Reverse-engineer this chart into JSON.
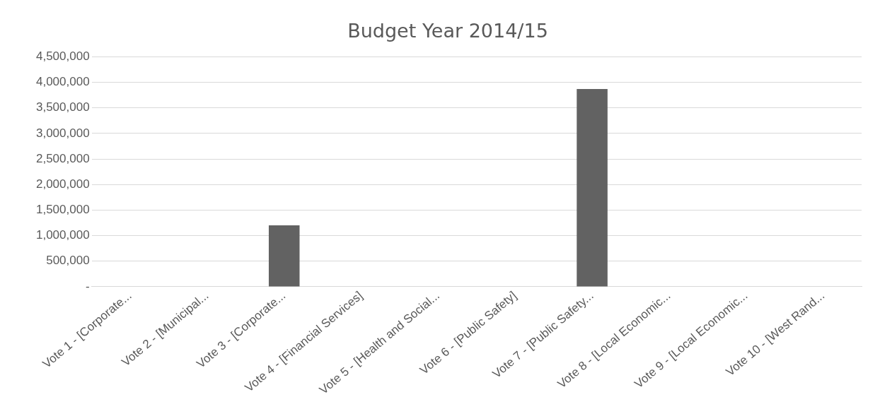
{
  "chart_data": {
    "type": "bar",
    "title": "Budget Year 2014/15",
    "categories": [
      "Vote 1 - [Corporate...",
      "Vote 2 - [Municipal...",
      "Vote 3 - [Corporate...",
      "Vote 4 - [Financial Services]",
      "Vote 5 - [Health and Social...",
      "Vote 6 - [Public Safety]",
      "Vote 7 - [Public Safety...",
      "Vote 8 - [Local Economic...",
      "Vote 9 - [Local Economic...",
      "Vote 10 - [West Rand..."
    ],
    "values": [
      0,
      0,
      1200000,
      0,
      0,
      0,
      3870000,
      0,
      0,
      0
    ],
    "color": "#626262",
    "ylim": [
      0,
      4500000
    ],
    "yticks": [
      {
        "value": 0,
        "label": "-"
      },
      {
        "value": 500000,
        "label": "500,000"
      },
      {
        "value": 1000000,
        "label": "1,000,000"
      },
      {
        "value": 1500000,
        "label": "1,500,000"
      },
      {
        "value": 2000000,
        "label": "2,000,000"
      },
      {
        "value": 2500000,
        "label": "2,500,000"
      },
      {
        "value": 3000000,
        "label": "3,000,000"
      },
      {
        "value": 3500000,
        "label": "3,500,000"
      },
      {
        "value": 4000000,
        "label": "4,000,000"
      },
      {
        "value": 4500000,
        "label": "4,500,000"
      }
    ],
    "grid": "y",
    "legend": false
  }
}
